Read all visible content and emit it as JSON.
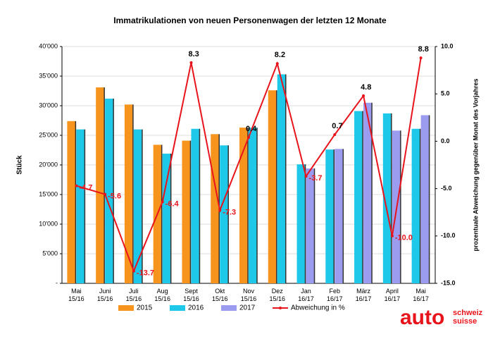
{
  "chart_data": {
    "type": "bar",
    "title": "Immatrikulationen von neuen Personenwagen der letzten 12 Monate",
    "ylabel": "Stück",
    "y2label": "prozentuale Abweichung gegenüber Monat des Vorjahres",
    "categories": [
      "Mai\n15/16",
      "Juni\n15/16",
      "Juli\n15/16",
      "Aug\n15/16",
      "Sept\n15/16",
      "Okt\n15/16",
      "Nov\n15/16",
      "Dez\n15/16",
      "Jan\n16/17",
      "Feb\n16/17",
      "März\n16/17",
      "April\n16/17",
      "Mai\n16/17"
    ],
    "series": [
      {
        "name": "2015",
        "color": "#f7941d",
        "values": [
          27400,
          33100,
          30200,
          23400,
          24100,
          25200,
          26300,
          32600,
          null,
          null,
          null,
          null,
          null
        ]
      },
      {
        "name": "2016",
        "color": "#1ec8e8",
        "values": [
          26000,
          31200,
          26000,
          21900,
          26100,
          23300,
          26300,
          35300,
          20100,
          22600,
          29100,
          28700,
          26100
        ]
      },
      {
        "name": "2017",
        "color": "#9b9bef",
        "values": [
          null,
          null,
          null,
          null,
          null,
          null,
          null,
          null,
          19400,
          22700,
          30500,
          25800,
          28400
        ]
      },
      {
        "name": "Abweichung in %",
        "type": "line",
        "axis": "y2",
        "color": "#e8141c",
        "values": [
          -4.7,
          -5.6,
          -13.7,
          -6.4,
          8.3,
          -7.3,
          0.4,
          8.2,
          -3.7,
          0.7,
          4.8,
          -10.0,
          8.8
        ],
        "value_labels": [
          "-4.7",
          "-5.6",
          "-13.7",
          "-6.4",
          "8.3",
          "-7.3",
          "0.4",
          "8.2",
          "-3.7",
          "0.7",
          "4.8",
          "-10.0",
          "8.8"
        ]
      }
    ],
    "ylim": [
      0,
      40000
    ],
    "yticks": [
      {
        "value": 0,
        "label": "-"
      },
      {
        "value": 5000,
        "label": "5'000"
      },
      {
        "value": 10000,
        "label": "10'000"
      },
      {
        "value": 15000,
        "label": "15'000"
      },
      {
        "value": 20000,
        "label": "20'000"
      },
      {
        "value": 25000,
        "label": "25'000"
      },
      {
        "value": 30000,
        "label": "30'000"
      },
      {
        "value": 35000,
        "label": "35'000"
      },
      {
        "value": 40000,
        "label": "40'000"
      }
    ],
    "y2lim": [
      -15,
      10
    ],
    "y2ticks": [
      {
        "value": -15,
        "label": "-15.0"
      },
      {
        "value": -10,
        "label": "-10.0"
      },
      {
        "value": -5,
        "label": "-5.0"
      },
      {
        "value": 0,
        "label": "0.0"
      },
      {
        "value": 5,
        "label": "5.0"
      },
      {
        "value": 10,
        "label": "10.0"
      }
    ],
    "grid": true
  },
  "logo": {
    "main": "auto",
    "line1": "schweiz",
    "line2": "suisse"
  }
}
